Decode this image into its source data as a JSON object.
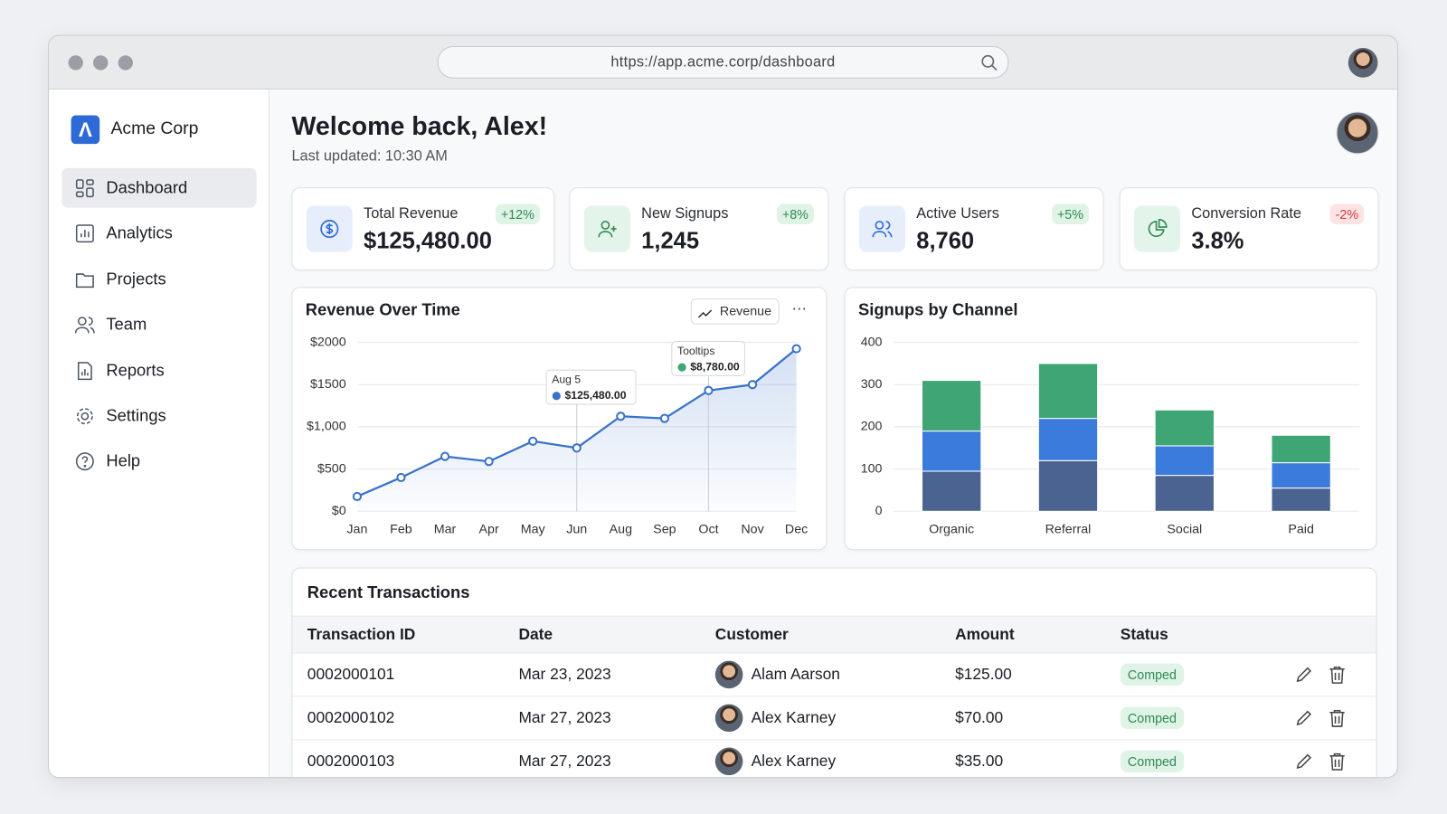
{
  "browser": {
    "url": "https://app.acme.corp/dashboard"
  },
  "sidebar": {
    "brand": "Acme Corp",
    "nav": [
      "Dashboard",
      "Analytics",
      "Projects",
      "Team",
      "Reports",
      "Settings",
      "Help"
    ]
  },
  "header": {
    "title": "Welcome back, Alex!",
    "subtitle": "Last updated: 10:30 AM"
  },
  "kpis": [
    {
      "label": "Total Revenue",
      "value": "$125,480.00",
      "change": "+12%"
    },
    {
      "label": "New Signups",
      "value": "1,245",
      "change": "+8%"
    },
    {
      "label": "Active Users",
      "value": "8,760",
      "change": "+5%"
    },
    {
      "label": "Conversion Rate",
      "value": "3.8%",
      "change": "-2%"
    }
  ],
  "chart_data": [
    {
      "type": "line",
      "title": "Revenue Over Time",
      "legend": "Revenue",
      "categories": [
        "Jan",
        "Feb",
        "Mar",
        "Apr",
        "May",
        "Jun",
        "Aug",
        "Sep",
        "Oct",
        "Nov",
        "Dec"
      ],
      "values": [
        175,
        400,
        650,
        590,
        830,
        750,
        1125,
        1100,
        1430,
        1500,
        1925
      ],
      "color": "#3a72c9",
      "ylim": [
        0,
        2000
      ],
      "yticks": [
        {
          "value": 0,
          "label": "$0"
        },
        {
          "value": 500,
          "label": "$500"
        },
        {
          "value": 1000,
          "label": "$1,000"
        },
        {
          "value": 1500,
          "label": "$1500"
        },
        {
          "value": 2000,
          "label": "$2000"
        }
      ],
      "grid": true,
      "annotations": [
        {
          "title": "Aug 5",
          "text": "$125,480.00"
        },
        {
          "title": "Tooltips",
          "text": "$8,780.00"
        }
      ]
    },
    {
      "type": "bar",
      "stacked": true,
      "title": "Signups by Channel",
      "categories": [
        "Organic",
        "Referral",
        "Social",
        "Paid"
      ],
      "series": [
        {
          "color": "#4b6390",
          "values": [
            95,
            120,
            85,
            55
          ]
        },
        {
          "color": "#3b7bdb",
          "values": [
            95,
            100,
            70,
            60
          ]
        },
        {
          "color": "#3fa574",
          "values": [
            120,
            130,
            85,
            65
          ]
        }
      ],
      "ylim": [
        0,
        400
      ],
      "yticks": [
        0,
        100,
        200,
        300,
        400
      ],
      "grid": true
    }
  ],
  "table": {
    "title": "Recent Transactions",
    "columns": [
      "Transaction ID",
      "Date",
      "Customer",
      "Amount",
      "Status"
    ],
    "rows": [
      [
        "0002000101",
        "Mar 23, 2023",
        "Alam Aarson",
        "$125.00",
        "Comped"
      ],
      [
        "0002000102",
        "Mar 27, 2023",
        "Alex Karney",
        "$70.00",
        "Comped"
      ],
      [
        "0002000103",
        "Mar 27, 2023",
        "Alex Karney",
        "$35.00",
        "Comped"
      ]
    ]
  }
}
